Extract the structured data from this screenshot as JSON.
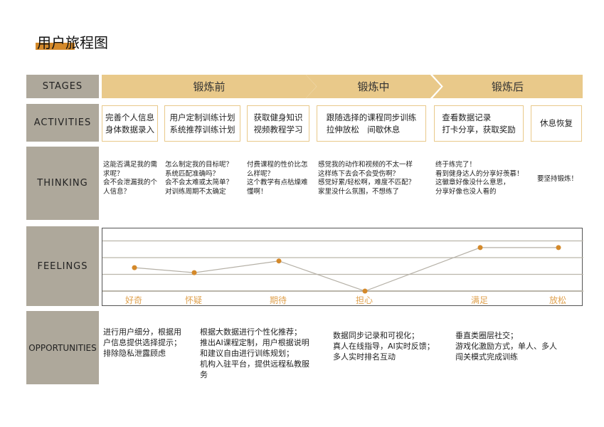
{
  "title": "用户旅程图",
  "labels": {
    "stages": "STAGES",
    "activities": "ACTIVITIES",
    "thinking": "THINKING",
    "feelings": "FEELINGS",
    "opportunities": "OPPORTUNITIES"
  },
  "stages": [
    "锻炼前",
    "锻炼中",
    "锻炼后"
  ],
  "activities": [
    "完善个人信息\n身体数据录入",
    "用户定制训练计划\n系统推荐训练计划",
    "获取健身知识\n视频教程学习",
    "跟随选择的课程同步训练\n拉伸放松　间歇休息",
    "查看数据记录\n打卡分享，获取奖励",
    "休息恢复"
  ],
  "thinking": [
    "这能否满足我的需\n求呢？\n会不会泄漏我的个\n人信息？",
    "怎么制定我的目标呢？\n系统匹配准确吗？\n会不会太难或太简单？\n对训练周期不太确定",
    "付费课程的性价比怎\n么样呢？\n这个教学有点枯燥难\n懂啊！",
    "感觉我的动作和视频的不太一样\n这样练下去会不会受伤啊？\n感觉好累/轻松啊，难度不匹配？\n家里没什么氛围，不想练了",
    "终于练完了！\n看到健身达人的分享好羡慕！\n这徽章好像没什么意思，\n分享好像也没人看的",
    "要坚持锻炼！"
  ],
  "opportunities": [
    "进行用户细分，根据用\n户信息提供选择提示；\n排除隐私泄露顾虑",
    "根据大数据进行个性化推荐；\n推出AI课程定制，用户根据说明\n和建议自由进行训练规划；\n机构入驻平台，提供远程私教服\n务",
    "数据同步记录和可视化；\n真人在线指导，AI实时反馈；\n多人实时排名互动",
    "垂直类圈层社交；\n游戏化激励方式，单人、多人\n闯关模式完成训练"
  ],
  "chart_data": {
    "type": "line",
    "categories": [
      "好奇",
      "怀疑",
      "期待",
      "担心",
      "满足",
      "放松"
    ],
    "values": [
      1.4,
      1.1,
      1.8,
      0,
      2.6,
      2.6
    ],
    "ylim": [
      0,
      3.7
    ],
    "grid": true,
    "colors": {
      "point": "#d4892a",
      "line": "#b5b0a6",
      "label": "#e0a24f"
    }
  },
  "colors": {
    "accent": "#e9c98a",
    "label_bg": "#aea89b",
    "title_bar": "#d4892a"
  }
}
